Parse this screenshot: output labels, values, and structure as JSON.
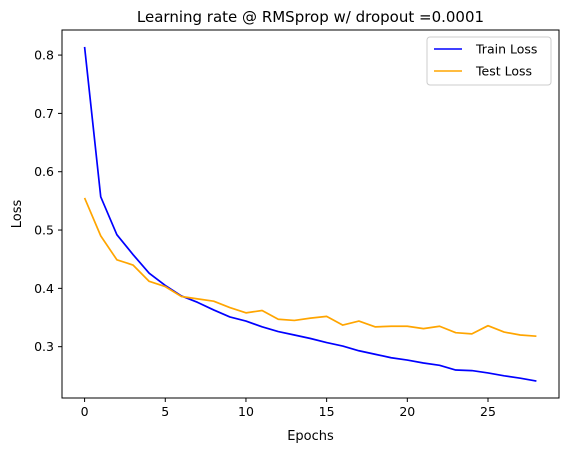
{
  "chart_data": {
    "type": "line",
    "title": "Learning rate @ RMSprop w/ dropout =0.0001",
    "xlabel": "Epochs",
    "ylabel": "Loss",
    "xlim": [
      -1.4,
      29.4
    ],
    "ylim": [
      0.212,
      0.843
    ],
    "xticks": [
      0,
      5,
      10,
      15,
      20,
      25
    ],
    "yticks": [
      0.3,
      0.4,
      0.5,
      0.6,
      0.7,
      0.8
    ],
    "grid": false,
    "legend_position": "top-right",
    "x": [
      0,
      1,
      2,
      3,
      4,
      5,
      6,
      7,
      8,
      9,
      10,
      11,
      12,
      13,
      14,
      15,
      16,
      17,
      18,
      19,
      20,
      21,
      22,
      23,
      24,
      25,
      26,
      27,
      28
    ],
    "series": [
      {
        "name": "Train Loss",
        "color": "#0000ff",
        "values": [
          0.814,
          0.557,
          0.492,
          0.458,
          0.426,
          0.405,
          0.387,
          0.376,
          0.363,
          0.351,
          0.344,
          0.334,
          0.326,
          0.32,
          0.314,
          0.307,
          0.301,
          0.293,
          0.287,
          0.281,
          0.277,
          0.272,
          0.268,
          0.26,
          0.259,
          0.255,
          0.25,
          0.246,
          0.241
        ]
      },
      {
        "name": "Test Loss",
        "color": "#ffa500",
        "values": [
          0.555,
          0.49,
          0.449,
          0.44,
          0.412,
          0.403,
          0.386,
          0.382,
          0.378,
          0.367,
          0.358,
          0.362,
          0.347,
          0.345,
          0.349,
          0.352,
          0.337,
          0.344,
          0.334,
          0.335,
          0.335,
          0.331,
          0.335,
          0.324,
          0.322,
          0.336,
          0.325,
          0.32,
          0.318
        ]
      }
    ]
  }
}
